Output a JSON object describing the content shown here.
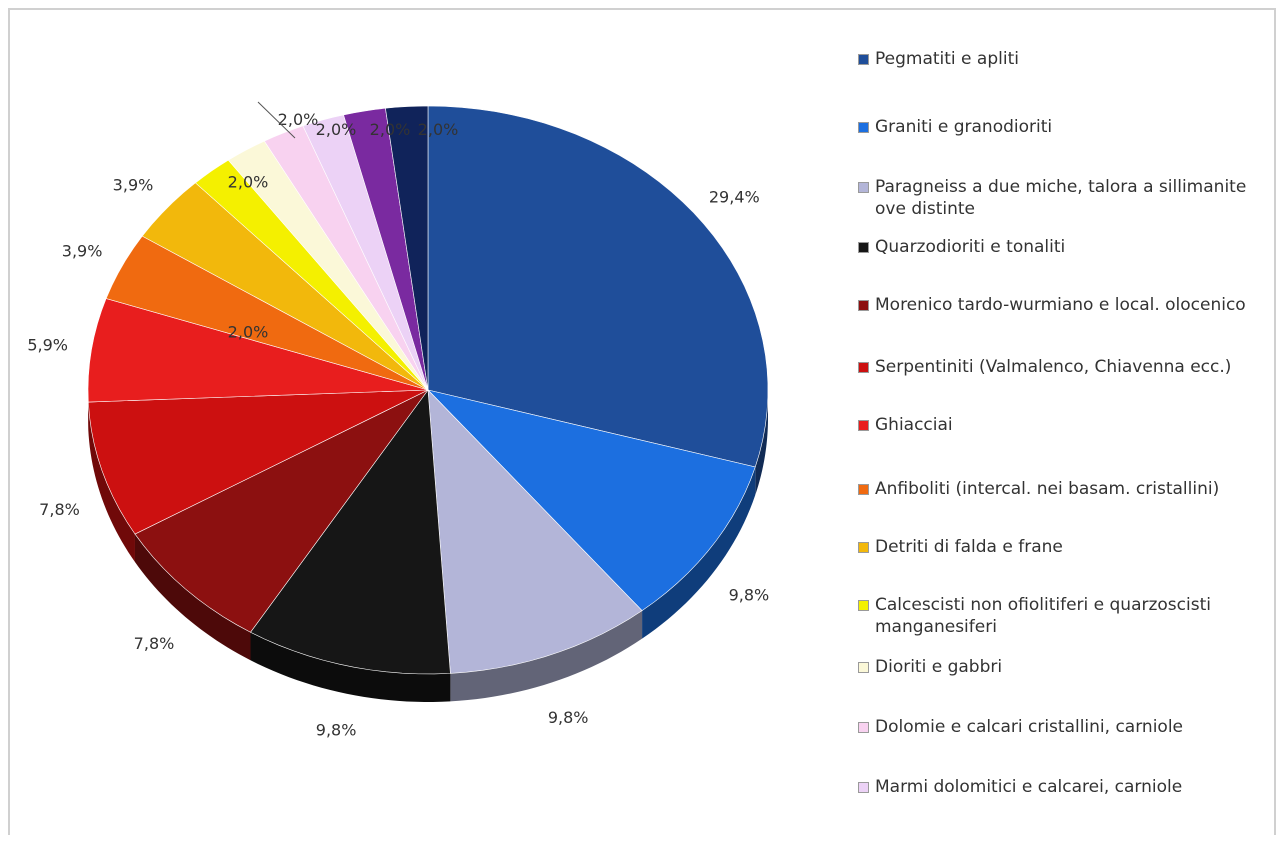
{
  "chart_data": {
    "type": "pie",
    "title": "",
    "slices": [
      {
        "label": "Pegmatiti e apliti",
        "value": 29.4,
        "display": "29,4%",
        "color": "#1f4e9a"
      },
      {
        "label": "Graniti e granodioriti",
        "value": 9.8,
        "display": "9,8%",
        "color": "#1c6fe0"
      },
      {
        "label": "Paragneiss a due miche, talora a sillimanite ove distinte",
        "value": 9.8,
        "display": "9,8%",
        "color": "#b3b5d8"
      },
      {
        "label": "Quarzodioriti e tonaliti",
        "value": 9.8,
        "display": "9,8%",
        "color": "#161616"
      },
      {
        "label": "Morenico tardo-wurmiano e local. olocenico",
        "value": 7.8,
        "display": "7,8%",
        "color": "#8c1010"
      },
      {
        "label": "Serpentiniti (Valmalenco, Chiavenna ecc.)",
        "value": 7.8,
        "display": "7,8%",
        "color": "#cc1010"
      },
      {
        "label": "Ghiacciai",
        "value": 5.9,
        "display": "5,9%",
        "color": "#e81e1e"
      },
      {
        "label": "Anfiboliti (intercal. nei basam. cristallini)",
        "value": 3.9,
        "display": "3,9%",
        "color": "#f06a10"
      },
      {
        "label": "Detriti di falda e frane",
        "value": 3.9,
        "display": "3,9%",
        "color": "#f2b80c"
      },
      {
        "label": "Calcescisti non ofiolitiferi e quarzoscisti manganesiferi",
        "value": 2.0,
        "display": "2,0%",
        "color": "#f4f000"
      },
      {
        "label": "Dioriti e gabbri",
        "value": 2.0,
        "display": "2,0%",
        "color": "#fbf8d8"
      },
      {
        "label": "Dolomie e calcari cristallini, carniole",
        "value": 2.0,
        "display": "2,0%",
        "color": "#f8d2f0"
      },
      {
        "label": "Marmi dolomitici e calcarei, carniole",
        "value": 2.0,
        "display": "2,0%",
        "color": "#ecd2f6"
      },
      {
        "label": "",
        "value": 2.0,
        "display": "2,0%",
        "color": "#7a2aa0"
      },
      {
        "label": "",
        "value": 2.0,
        "display": "2,0%",
        "color": "#10235a"
      }
    ],
    "legend_position": "right"
  },
  "legend": {
    "items": [
      {
        "label": "Pegmatiti e apliti",
        "color": "#1f4e9a"
      },
      {
        "label": "Graniti e granodioriti",
        "color": "#1c6fe0"
      },
      {
        "label": "Paragneiss a due miche, talora a sillimanite ove distinte",
        "color": "#b3b5d8"
      },
      {
        "label": "Quarzodioriti e tonaliti",
        "color": "#161616"
      },
      {
        "label": "Morenico tardo-wurmiano e local. olocenico",
        "color": "#8c1010"
      },
      {
        "label": "Serpentiniti (Valmalenco, Chiavenna ecc.)",
        "color": "#cc1010"
      },
      {
        "label": "Ghiacciai",
        "color": "#e81e1e"
      },
      {
        "label": "Anfiboliti (intercal. nei basam. cristallini)",
        "color": "#f06a10"
      },
      {
        "label": "Detriti di falda e frane",
        "color": "#f2b80c"
      },
      {
        "label": "Calcescisti non ofiolitiferi e quarzoscisti manganesiferi",
        "color": "#f4f000"
      },
      {
        "label": "Dioriti e gabbri",
        "color": "#fbf8d8"
      },
      {
        "label": "Dolomie e calcari cristallini, carniole",
        "color": "#f8d2f0"
      },
      {
        "label": "Marmi dolomitici e calcarei, carniole",
        "color": "#ecd2f6"
      }
    ]
  }
}
